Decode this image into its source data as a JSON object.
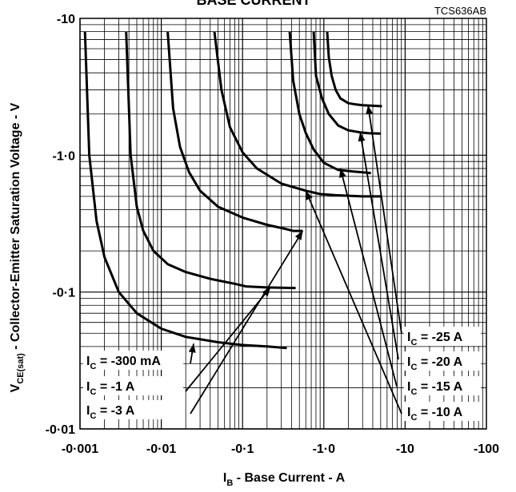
{
  "chart_data": {
    "type": "line",
    "title": "BASE CURRENT",
    "code": "TCS636AB",
    "xlabel_main": "I",
    "xlabel_sub": "B",
    "xlabel_rest": " - Base Current - A",
    "ylabel_main": "V",
    "ylabel_sub": "CE(sat)",
    "ylabel_rest": " - Collector-Emitter Saturation Voltage - V",
    "xscale": "log",
    "yscale": "log",
    "xlim": [
      0.001,
      100
    ],
    "ylim": [
      0.01,
      10
    ],
    "x_ticks": [
      {
        "value": 0.001,
        "label": "-0·001"
      },
      {
        "value": 0.01,
        "label": "-0·01"
      },
      {
        "value": 0.1,
        "label": "-0·1"
      },
      {
        "value": 1,
        "label": "-1·0"
      },
      {
        "value": 10,
        "label": "-10"
      },
      {
        "value": 100,
        "label": "-100"
      }
    ],
    "y_ticks": [
      {
        "value": 0.01,
        "label": "-0·01"
      },
      {
        "value": 0.1,
        "label": "-0·1"
      },
      {
        "value": 1,
        "label": "-1·0"
      },
      {
        "value": 10,
        "label": "-10"
      }
    ],
    "grid": true,
    "series": [
      {
        "name": "I_C = -300 mA",
        "x": [
          0.00115,
          0.0013,
          0.0016,
          0.002,
          0.003,
          0.005,
          0.01,
          0.02,
          0.05,
          0.1,
          0.2,
          0.35
        ],
        "y": [
          8,
          1.0,
          0.33,
          0.18,
          0.1,
          0.07,
          0.054,
          0.047,
          0.043,
          0.041,
          0.04,
          0.039
        ]
      },
      {
        "name": "I_C = -1 A",
        "x": [
          0.0037,
          0.0042,
          0.005,
          0.006,
          0.008,
          0.012,
          0.02,
          0.04,
          0.08,
          0.11,
          0.2,
          0.45
        ],
        "y": [
          8,
          1.0,
          0.42,
          0.28,
          0.2,
          0.16,
          0.14,
          0.125,
          0.115,
          0.11,
          0.108,
          0.107
        ]
      },
      {
        "name": "I_C = -3 A",
        "x": [
          0.012,
          0.014,
          0.017,
          0.022,
          0.03,
          0.05,
          0.1,
          0.2,
          0.33,
          0.42,
          0.55
        ],
        "y": [
          8,
          2.2,
          1.15,
          0.75,
          0.55,
          0.42,
          0.35,
          0.31,
          0.29,
          0.28,
          0.28
        ]
      },
      {
        "name": "I_C = -10 A",
        "x": [
          0.045,
          0.055,
          0.07,
          0.1,
          0.15,
          0.3,
          0.6,
          0.9,
          1.4,
          3,
          5
        ],
        "y": [
          8,
          3.0,
          1.6,
          1.05,
          0.8,
          0.62,
          0.55,
          0.52,
          0.51,
          0.5,
          0.5
        ]
      },
      {
        "name": "I_C = -15 A",
        "x": [
          0.38,
          0.42,
          0.5,
          0.6,
          0.75,
          1.0,
          1.5,
          2.3,
          3,
          3.8
        ],
        "y": [
          8,
          3.5,
          2.0,
          1.45,
          1.1,
          0.88,
          0.78,
          0.76,
          0.75,
          0.74
        ]
      },
      {
        "name": "I_C = -20 A",
        "x": [
          0.75,
          0.8,
          0.95,
          1.15,
          1.5,
          2.0,
          2.8,
          3.5,
          5
        ],
        "y": [
          8,
          3.8,
          2.6,
          2.0,
          1.65,
          1.52,
          1.47,
          1.45,
          1.44
        ]
      },
      {
        "name": "I_C = -25 A",
        "x": [
          1.1,
          1.15,
          1.25,
          1.4,
          1.6,
          2.0,
          2.5,
          3,
          4,
          5.2
        ],
        "y": [
          8,
          5.2,
          3.8,
          3.0,
          2.6,
          2.4,
          2.35,
          2.32,
          2.3,
          2.28
        ]
      }
    ],
    "labels": [
      {
        "text_main": "I",
        "text_sub": "C",
        "text_rest": " = -300 mA"
      },
      {
        "text_main": "I",
        "text_sub": "C",
        "text_rest": " =      -1 A"
      },
      {
        "text_main": "I",
        "text_sub": "C",
        "text_rest": " =      -3 A"
      },
      {
        "text_main": "I",
        "text_sub": "C",
        "text_rest": " = -25 A"
      },
      {
        "text_main": "I",
        "text_sub": "C",
        "text_rest": " = -20 A"
      },
      {
        "text_main": "I",
        "text_sub": "C",
        "text_rest": " = -15 A"
      },
      {
        "text_main": "I",
        "text_sub": "C",
        "text_rest": " = -10 A"
      }
    ],
    "arrows": [
      {
        "from_label": 0,
        "to": [
          0.025,
          0.042
        ]
      },
      {
        "from_label": 1,
        "to": [
          0.22,
          0.108
        ]
      },
      {
        "from_label": 2,
        "to": [
          0.55,
          0.28
        ]
      },
      {
        "from_label": 3,
        "to": [
          3.5,
          2.32
        ]
      },
      {
        "from_label": 4,
        "to": [
          2.8,
          1.47
        ]
      },
      {
        "from_label": 5,
        "to": [
          1.6,
          0.8
        ]
      },
      {
        "from_label": 6,
        "to": [
          0.6,
          0.55
        ]
      }
    ]
  }
}
